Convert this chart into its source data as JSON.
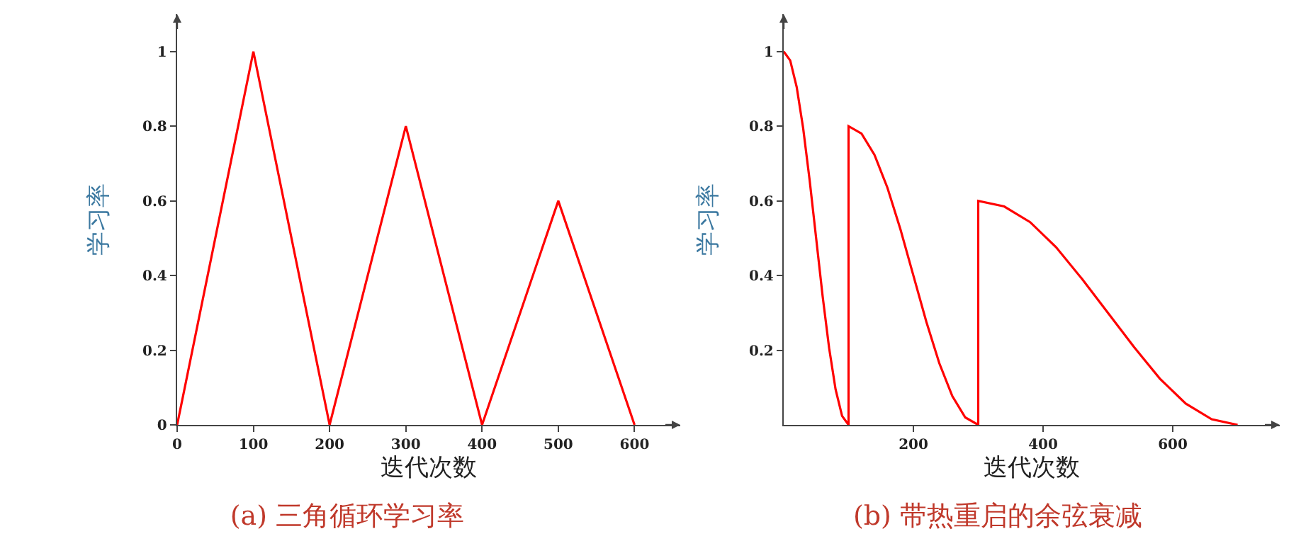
{
  "chart_data": [
    {
      "type": "line",
      "title": "(a) 三角循环学习率",
      "xlabel": "迭代次数",
      "ylabel": "学习率",
      "x": [
        0,
        100,
        200,
        300,
        400,
        500,
        600
      ],
      "series": [
        {
          "color": "#ff0000",
          "values": [
            0,
            1,
            0,
            0.8,
            0,
            0.6,
            0
          ]
        }
      ],
      "xlim": [
        0,
        660
      ],
      "ylim": [
        0,
        1.1
      ],
      "xticks": [
        0,
        100,
        200,
        300,
        400,
        500,
        600
      ],
      "yticks": [
        0,
        0.2,
        0.4,
        0.6,
        0.8,
        1
      ],
      "grid": false
    },
    {
      "type": "line",
      "title": "(b) 带热重启的余弦衰减",
      "xlabel": "迭代次数",
      "ylabel": "学习率",
      "x": [
        0,
        10,
        20,
        30,
        40,
        50,
        60,
        70,
        80,
        90,
        100,
        100,
        120,
        140,
        160,
        180,
        200,
        220,
        240,
        260,
        280,
        300,
        300,
        340,
        380,
        420,
        460,
        500,
        540,
        580,
        620,
        660,
        700
      ],
      "series": [
        {
          "color": "#ff0000",
          "values": [
            1,
            0.976,
            0.905,
            0.794,
            0.655,
            0.5,
            0.345,
            0.206,
            0.095,
            0.024,
            0,
            0.8,
            0.78,
            0.723,
            0.635,
            0.524,
            0.4,
            0.276,
            0.165,
            0.077,
            0.02,
            0,
            0.6,
            0.585,
            0.543,
            0.476,
            0.391,
            0.3,
            0.209,
            0.124,
            0.057,
            0.015,
            0
          ]
        }
      ],
      "xlim": [
        0,
        765
      ],
      "ylim": [
        0,
        1.1
      ],
      "xticks": [
        200,
        400,
        600
      ],
      "yticks": [
        0.2,
        0.4,
        0.6,
        0.8,
        1
      ],
      "grid": false
    }
  ]
}
